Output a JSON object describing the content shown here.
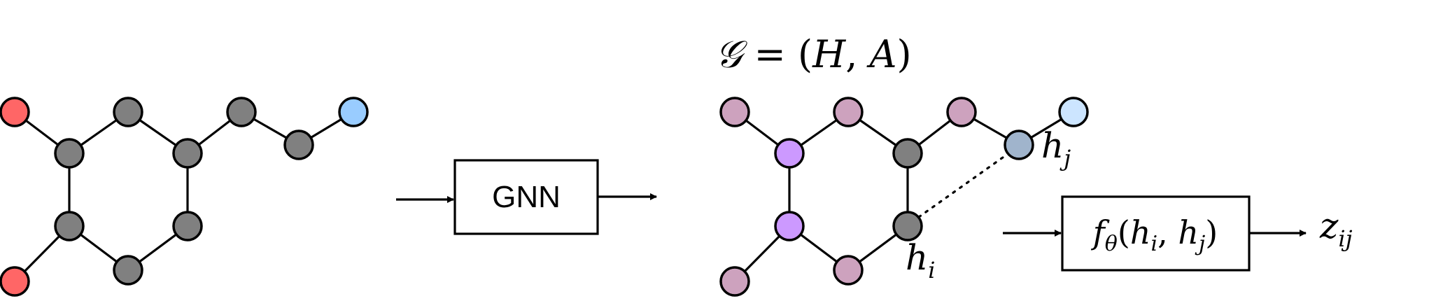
{
  "colors": {
    "input_dark": "#808080",
    "input_red": "#ff6666",
    "input_blue": "#99ccff",
    "out_pink": "#cda2be",
    "out_purple": "#cc99ff",
    "out_grey": "#808080",
    "out_steel": "#a0b4cc",
    "out_lightblue": "#cce5ff"
  },
  "gnn_box": {
    "label": "GNN"
  },
  "graph_label": {
    "g": "𝒢",
    "eq": " = (",
    "H": "H",
    "comma": ", ",
    "A": "A",
    "close": ")"
  },
  "h_i": {
    "base": "h",
    "sub": "i"
  },
  "h_j": {
    "base": "h",
    "sub": "j"
  },
  "f_box": {
    "f": "f",
    "theta": "θ",
    "open": "(",
    "h1": "h",
    "i": "i",
    "comma": ", ",
    "h2": "h",
    "j": "j",
    "close": ")"
  },
  "z_out": {
    "base": "z",
    "sub": "ij"
  }
}
